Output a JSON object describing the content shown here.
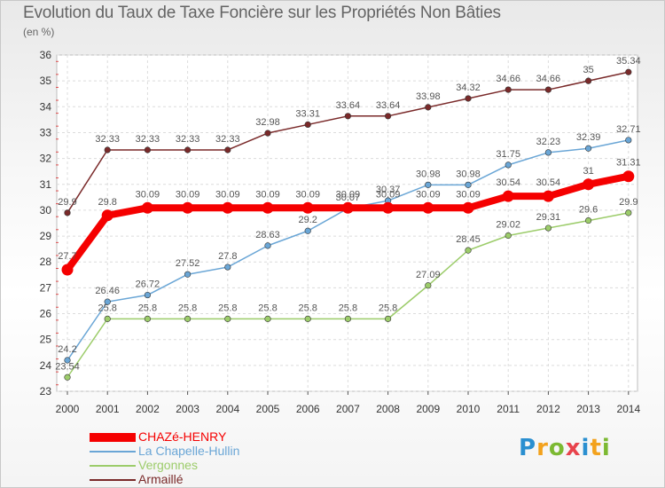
{
  "title": "Evolution du Taux de Taxe Foncière sur les Propriétés Non Bâties",
  "subtitle": "(en %)",
  "brand": {
    "text": "Proxiti",
    "letters": [
      "P",
      "r",
      "o",
      "x",
      "i",
      "t",
      "i"
    ]
  },
  "chart_data": {
    "type": "line",
    "title": "Evolution du Taux de Taxe Foncière sur les Propriétés Non Bâties",
    "ylabel": "(en %)",
    "xlabel": "",
    "ylim": [
      23,
      36
    ],
    "yticks": [
      23,
      24,
      25,
      26,
      27,
      28,
      29,
      30,
      31,
      32,
      33,
      34,
      35,
      36
    ],
    "categories": [
      "2000",
      "2001",
      "2002",
      "2003",
      "2004",
      "2005",
      "2006",
      "2007",
      "2008",
      "2009",
      "2010",
      "2011",
      "2012",
      "2013",
      "2014"
    ],
    "grid": true,
    "legend": "bottom-left",
    "series": [
      {
        "name": "Armaillé",
        "color": "#7a2a2a",
        "emphasis": false,
        "values": [
          29.9,
          32.33,
          32.33,
          32.33,
          32.33,
          32.98,
          33.31,
          33.64,
          33.64,
          33.98,
          34.32,
          34.66,
          34.66,
          35,
          35.34
        ],
        "labels": [
          "29.9",
          "32.33",
          "32.33",
          "32.33",
          "32.33",
          "32.98",
          "33.31",
          "33.64",
          "33.64",
          "33.98",
          "34.32",
          "34.66",
          "34.66",
          "35",
          "35.34"
        ]
      },
      {
        "name": "La Chapelle-Hullin",
        "color": "#6aa6d6",
        "emphasis": false,
        "values": [
          24.2,
          26.46,
          26.72,
          27.52,
          27.8,
          28.63,
          29.2,
          30.07,
          30.37,
          30.98,
          30.98,
          31.75,
          32.23,
          32.39,
          32.71
        ],
        "labels": [
          "24.2",
          "26.46",
          "26.72",
          "27.52",
          "27.8",
          "28.63",
          "29.2",
          "30.07",
          "30.37",
          "30.98",
          "30.98",
          "31.75",
          "32.23",
          "32.39",
          "32.71"
        ]
      },
      {
        "name": "Vergonnes",
        "color": "#9ccc6a",
        "emphasis": false,
        "values": [
          23.54,
          25.8,
          25.8,
          25.8,
          25.8,
          25.8,
          25.8,
          25.8,
          25.8,
          27.09,
          28.45,
          29.02,
          29.31,
          29.6,
          29.9
        ],
        "labels": [
          "23.54",
          "25.8",
          "25.8",
          "25.8",
          "25.8",
          "25.8",
          "25.8",
          "25.8",
          "25.8",
          "27.09",
          "28.45",
          "29.02",
          "29.31",
          "29.6",
          "29.9"
        ]
      },
      {
        "name": "CHAZé-HENRY",
        "color": "#f50000",
        "emphasis": true,
        "values": [
          27.7,
          29.8,
          30.09,
          30.09,
          30.09,
          30.09,
          30.09,
          30.09,
          30.09,
          30.09,
          30.09,
          30.54,
          30.54,
          31,
          31.31
        ],
        "labels": [
          "27.7",
          "29.8",
          "30.09",
          "30.09",
          "30.09",
          "30.09",
          "30.09",
          "30.09",
          "30.09",
          "30.09",
          "30.09",
          "30.54",
          "30.54",
          "31",
          "31.31"
        ]
      }
    ],
    "legend_order": [
      "CHAZé-HENRY",
      "La Chapelle-Hullin",
      "Vergonnes",
      "Armaillé"
    ]
  }
}
